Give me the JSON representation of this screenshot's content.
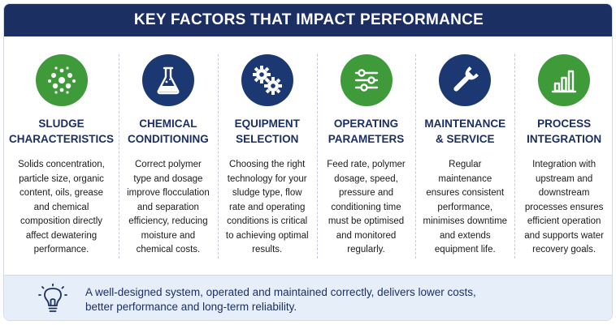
{
  "header": {
    "title": "KEY FACTORS THAT IMPACT PERFORMANCE"
  },
  "columns": [
    {
      "icon": "particles-icon",
      "color": "#3f9b3a",
      "title_line1": "SLUDGE",
      "title_line2": "CHARACTERISTICS",
      "body": "Solids concentration, particle size, organic content, oils, grease and chemical composition directly affect dewatering performance."
    },
    {
      "icon": "flask-icon",
      "color": "#1b3873",
      "title_line1": "CHEMICAL",
      "title_line2": "CONDITIONING",
      "body": "Correct polymer type and dosage improve flocculation and separation efficiency, reducing moisture and chemical costs."
    },
    {
      "icon": "gears-icon",
      "color": "#1b3873",
      "title_line1": "EQUIPMENT",
      "title_line2": "SELECTION",
      "body": "Choosing the right technology for your sludge type, flow rate and operating conditions is critical to achieving optimal results."
    },
    {
      "icon": "sliders-icon",
      "color": "#3f9b3a",
      "title_line1": "OPERATING",
      "title_line2": "PARAMETERS",
      "body": "Feed rate, polymer dosage, speed, pressure and conditioning time must be optimised and monitored regularly."
    },
    {
      "icon": "wrench-icon",
      "color": "#1b3873",
      "title_line1": "MAINTENANCE",
      "title_line2": "& SERVICE",
      "body": "Regular maintenance ensures consistent performance, minimises downtime and extends equipment life."
    },
    {
      "icon": "bar-chart-icon",
      "color": "#3f9b3a",
      "title_line1": "PROCESS",
      "title_line2": "INTEGRATION",
      "body": "Integration with upstream and downstream processes ensures efficient operation and supports water recovery goals."
    }
  ],
  "footer": {
    "icon": "lightbulb-icon",
    "line1": "A well-designed system, operated and maintained correctly, delivers lower costs,",
    "line2": "better performance and long-term reliability."
  }
}
